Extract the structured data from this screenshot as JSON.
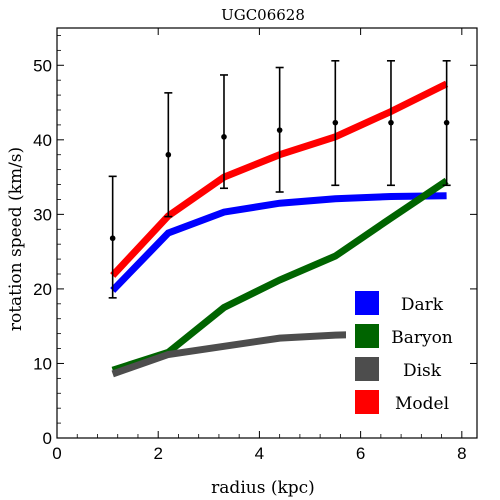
{
  "chart_data": {
    "type": "line",
    "title": "UGC06628",
    "xlabel": "radius (kpc)",
    "ylabel": "rotation speed (km/s)",
    "xlim": [
      0,
      8.3
    ],
    "ylim": [
      0,
      55
    ],
    "xticks": [
      0,
      2,
      4,
      6,
      8
    ],
    "yticks": [
      0,
      10,
      20,
      30,
      40,
      50
    ],
    "grid": false,
    "legend_position": "bottom-right",
    "observed": {
      "x": [
        1.1,
        2.2,
        3.3,
        4.4,
        5.5,
        6.6,
        7.7
      ],
      "y": [
        26.8,
        38.0,
        40.4,
        41.3,
        42.3,
        42.3,
        42.3
      ],
      "yerr_low": [
        8.0,
        8.3,
        6.9,
        8.3,
        8.4,
        8.4,
        8.4
      ],
      "yerr_high": [
        8.3,
        8.3,
        8.3,
        8.4,
        8.3,
        8.3,
        8.3
      ]
    },
    "series": [
      {
        "name": "Dark",
        "color": "#0000ff",
        "x": [
          1.1,
          2.2,
          3.3,
          4.4,
          5.5,
          6.6,
          7.7
        ],
        "values": [
          19.8,
          27.5,
          30.3,
          31.5,
          32.1,
          32.4,
          32.5
        ]
      },
      {
        "name": "Baryon",
        "color": "#006400",
        "x": [
          1.1,
          2.2,
          3.3,
          4.4,
          5.5,
          6.6,
          7.7
        ],
        "values": [
          9.1,
          11.5,
          17.5,
          21.2,
          24.4,
          29.5,
          34.5
        ]
      },
      {
        "name": "Disk",
        "color": "#4d4d4d",
        "x": [
          1.1,
          2.2,
          3.3,
          4.4,
          5.5,
          6.6,
          7.7
        ],
        "values": [
          8.6,
          11.2,
          12.3,
          13.4,
          13.8,
          14.0,
          14.1
        ]
      },
      {
        "name": "Model",
        "color": "#ff0000",
        "x": [
          1.1,
          2.2,
          3.3,
          4.4,
          5.5,
          6.6,
          7.7
        ],
        "values": [
          21.8,
          29.8,
          35.0,
          38.0,
          40.4,
          43.8,
          47.5
        ]
      }
    ]
  }
}
